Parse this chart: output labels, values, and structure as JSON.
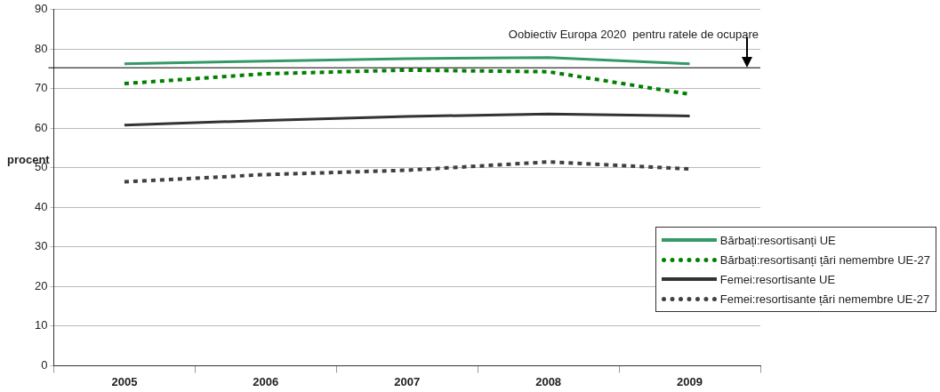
{
  "chart_data": {
    "type": "line",
    "ylabel": "procent",
    "categories": [
      "2005",
      "2006",
      "2007",
      "2008",
      "2009"
    ],
    "series": [
      {
        "name": "Bărbați:resortisanți UE",
        "color": "#339966",
        "line_style": "solid",
        "values": [
          76.3,
          77.0,
          77.6,
          77.9,
          76.3
        ]
      },
      {
        "name": "Bărbați:resortisanți țări nemembre UE-27",
        "color": "#008000",
        "line_style": "dotted",
        "values": [
          71.3,
          73.8,
          74.7,
          74.3,
          68.6
        ]
      },
      {
        "name": "Femei:resortisante UE",
        "color": "#333333",
        "line_style": "solid",
        "values": [
          60.8,
          62.0,
          63.0,
          63.6,
          63.1
        ]
      },
      {
        "name": "Femei:resortisante țări nemembre UE-27",
        "color": "#404040",
        "line_style": "dotted",
        "values": [
          46.5,
          48.3,
          49.4,
          51.5,
          49.7
        ]
      }
    ],
    "ylim": [
      0,
      90
    ],
    "yticks": [
      0,
      10,
      20,
      30,
      40,
      50,
      60,
      70,
      80,
      90
    ],
    "grid": "y",
    "legend": "bottom right",
    "marker": "none",
    "ref_lines": [
      {
        "axis": "y",
        "value": 75.3,
        "label": "Oobiectiv Europa 2020  pentru ratele de ocupare",
        "color": "#000000"
      }
    ]
  }
}
